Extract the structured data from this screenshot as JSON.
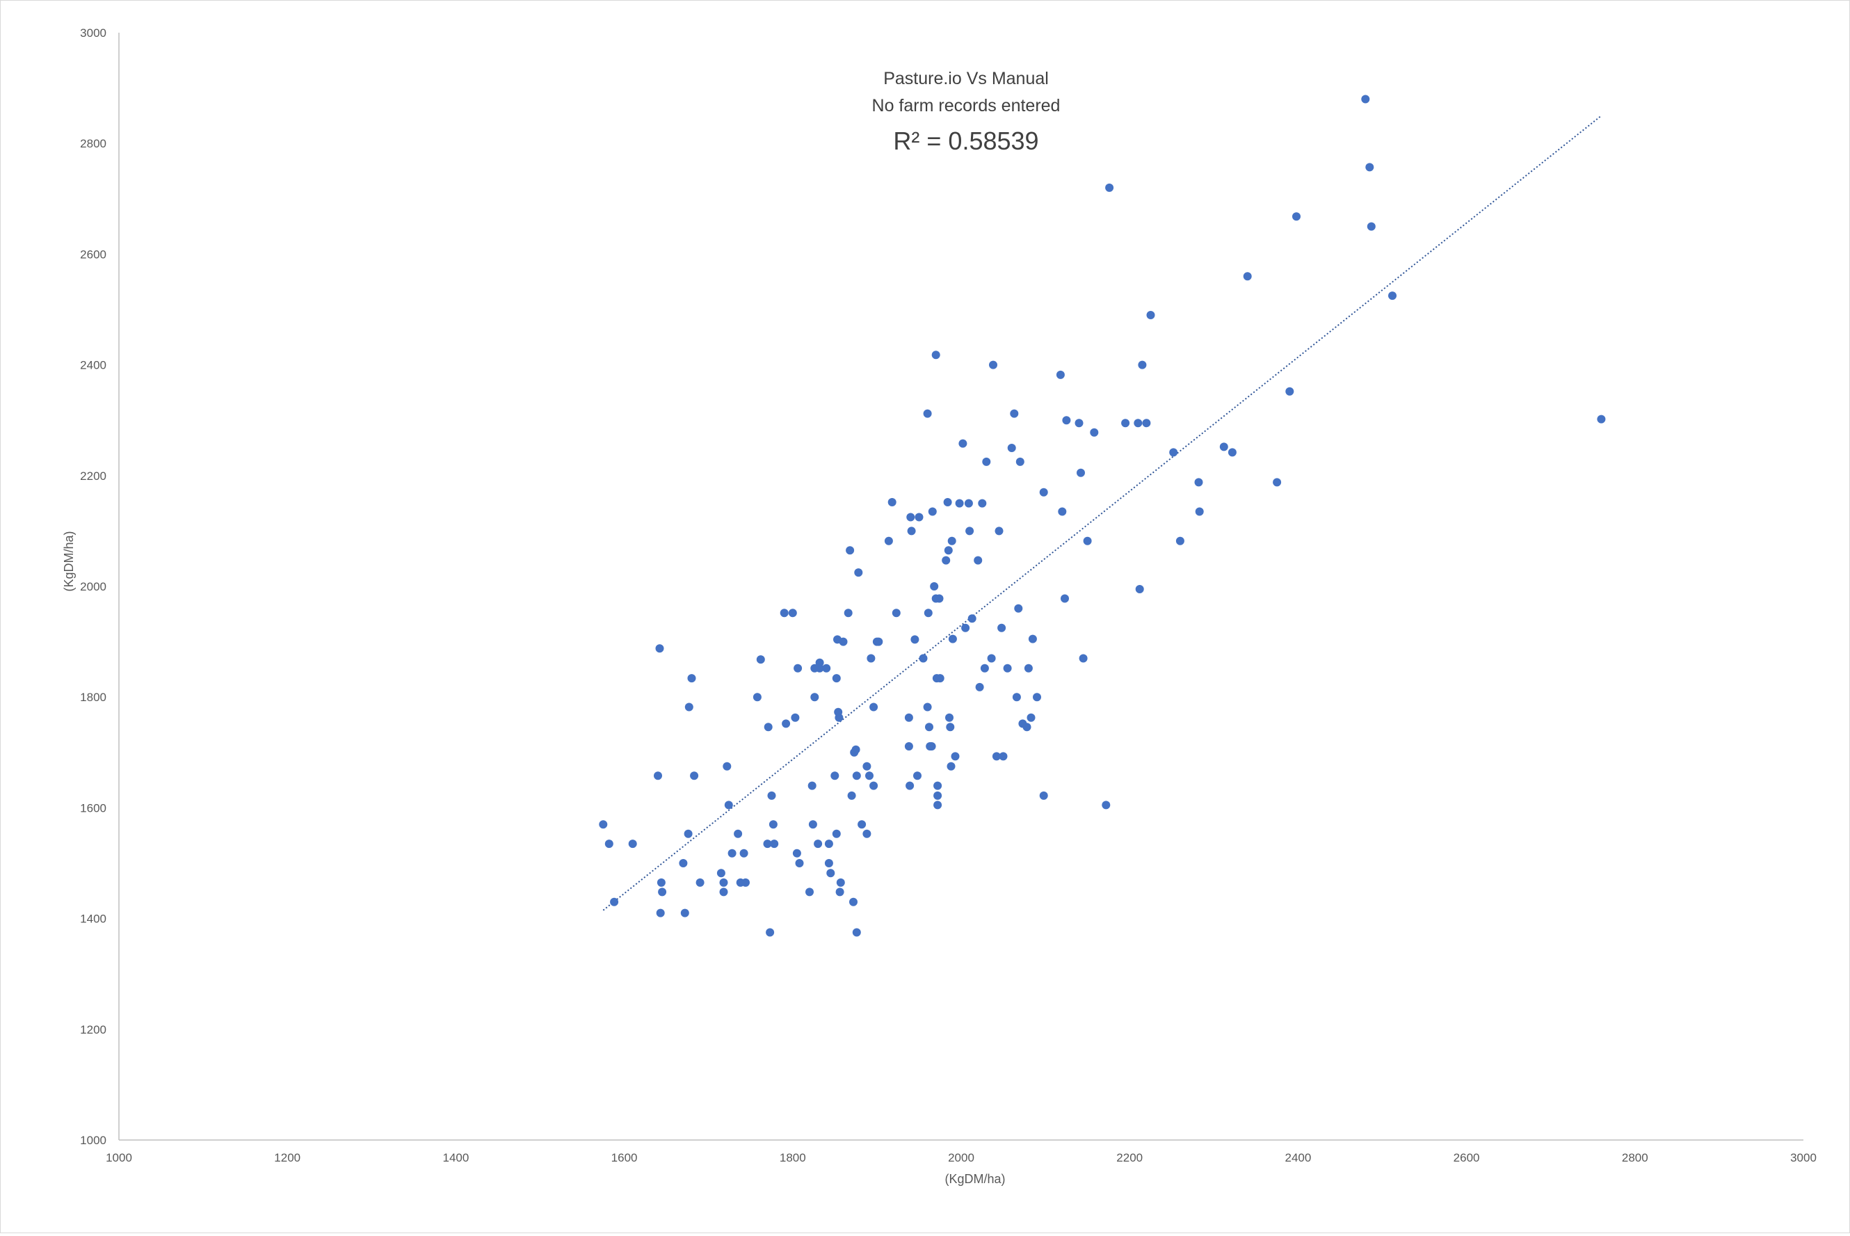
{
  "chart_data": {
    "type": "scatter",
    "title": "Pasture.io Vs Manual",
    "subtitle": "No farm records entered",
    "annotation": "R² = 0.58539",
    "xlabel": "(KgDM/ha)",
    "ylabel": "(KgDM/ha)",
    "xlim": [
      1000,
      3000
    ],
    "ylim": [
      1000,
      3000
    ],
    "x_ticks": [
      "1000",
      "1200",
      "1400",
      "1600",
      "1800",
      "2000",
      "2200",
      "2400",
      "2600",
      "2800",
      "3000"
    ],
    "y_ticks": [
      "1000",
      "1200",
      "1400",
      "1600",
      "1800",
      "2000",
      "2200",
      "2400",
      "2600",
      "2800",
      "3000"
    ],
    "grid": false,
    "legend": "none",
    "marker_color": "#4472c4",
    "trendline": {
      "style": "dotted",
      "color": "#2f5597",
      "from": [
        1575,
        1415
      ],
      "to": [
        2760,
        2850
      ]
    },
    "series": [
      {
        "points": [
          [
            1575,
            1570
          ],
          [
            1582,
            1535
          ],
          [
            1588,
            1430
          ],
          [
            1610,
            1535
          ],
          [
            1640,
            1658
          ],
          [
            1642,
            1888
          ],
          [
            1644,
            1465
          ],
          [
            1645,
            1448
          ],
          [
            1643,
            1410
          ],
          [
            1670,
            1500
          ],
          [
            1672,
            1410
          ],
          [
            1676,
            1553
          ],
          [
            1677,
            1782
          ],
          [
            1680,
            1834
          ],
          [
            1683,
            1658
          ],
          [
            1690,
            1465
          ],
          [
            1715,
            1482
          ],
          [
            1718,
            1465
          ],
          [
            1718,
            1448
          ],
          [
            1722,
            1675
          ],
          [
            1724,
            1605
          ],
          [
            1728,
            1518
          ],
          [
            1735,
            1553
          ],
          [
            1738,
            1465
          ],
          [
            1742,
            1518
          ],
          [
            1744,
            1465
          ],
          [
            1758,
            1800
          ],
          [
            1762,
            1868
          ],
          [
            1770,
            1535
          ],
          [
            1771,
            1746
          ],
          [
            1775,
            1622
          ],
          [
            1773,
            1375
          ],
          [
            1777,
            1570
          ],
          [
            1778,
            1535
          ],
          [
            1790,
            1952
          ],
          [
            1792,
            1752
          ],
          [
            1800,
            1952
          ],
          [
            1805,
            1518
          ],
          [
            1803,
            1763
          ],
          [
            1806,
            1852
          ],
          [
            1808,
            1500
          ],
          [
            1820,
            1448
          ],
          [
            1823,
            1640
          ],
          [
            1824,
            1570
          ],
          [
            1826,
            1800
          ],
          [
            1826,
            1852
          ],
          [
            1830,
            1535
          ],
          [
            1832,
            1852
          ],
          [
            1832,
            1862
          ],
          [
            1840,
            1852
          ],
          [
            1843,
            1535
          ],
          [
            1843,
            1500
          ],
          [
            1845,
            1482
          ],
          [
            1850,
            1658
          ],
          [
            1852,
            1834
          ],
          [
            1852,
            1553
          ],
          [
            1853,
            1904
          ],
          [
            1854,
            1773
          ],
          [
            1855,
            1763
          ],
          [
            1856,
            1448
          ],
          [
            1857,
            1465
          ],
          [
            1860,
            1900
          ],
          [
            1866,
            1952
          ],
          [
            1868,
            2065
          ],
          [
            1870,
            1622
          ],
          [
            1872,
            1430
          ],
          [
            1873,
            1700
          ],
          [
            1875,
            1705
          ],
          [
            1876,
            1658
          ],
          [
            1876,
            1375
          ],
          [
            1878,
            2025
          ],
          [
            1882,
            1570
          ],
          [
            1888,
            1553
          ],
          [
            1888,
            1675
          ],
          [
            1891,
            1658
          ],
          [
            1893,
            1870
          ],
          [
            1896,
            1640
          ],
          [
            1896,
            1782
          ],
          [
            1900,
            1900
          ],
          [
            1902,
            1900
          ],
          [
            1914,
            2082
          ],
          [
            1918,
            2152
          ],
          [
            1923,
            1952
          ],
          [
            1938,
            1763
          ],
          [
            1938,
            1711
          ],
          [
            1939,
            1640
          ],
          [
            1940,
            2125
          ],
          [
            1941,
            2100
          ],
          [
            1945,
            1904
          ],
          [
            1948,
            1658
          ],
          [
            1950,
            2125
          ],
          [
            1955,
            1870
          ],
          [
            1960,
            1782
          ],
          [
            1960,
            2312
          ],
          [
            1961,
            1952
          ],
          [
            1962,
            1746
          ],
          [
            1963,
            1711
          ],
          [
            1965,
            1711
          ],
          [
            1966,
            2135
          ],
          [
            1968,
            2000
          ],
          [
            1970,
            1978
          ],
          [
            1970,
            2418
          ],
          [
            1971,
            1834
          ],
          [
            1972,
            1622
          ],
          [
            1972,
            1605
          ],
          [
            1972,
            1640
          ],
          [
            1974,
            1978
          ],
          [
            1975,
            1834
          ],
          [
            1982,
            2047
          ],
          [
            1984,
            2152
          ],
          [
            1985,
            2065
          ],
          [
            1986,
            1763
          ],
          [
            1987,
            1746
          ],
          [
            1988,
            1675
          ],
          [
            1989,
            2082
          ],
          [
            1990,
            1905
          ],
          [
            1993,
            1693
          ],
          [
            1998,
            2150
          ],
          [
            2002,
            2258
          ],
          [
            2005,
            1925
          ],
          [
            2009,
            2150
          ],
          [
            2010,
            2100
          ],
          [
            2013,
            1942
          ],
          [
            2020,
            2047
          ],
          [
            2022,
            1818
          ],
          [
            2025,
            2150
          ],
          [
            2028,
            1852
          ],
          [
            2030,
            2225
          ],
          [
            2036,
            1870
          ],
          [
            2038,
            2400
          ],
          [
            2042,
            1693
          ],
          [
            2045,
            2100
          ],
          [
            2048,
            1925
          ],
          [
            2050,
            1693
          ],
          [
            2055,
            1852
          ],
          [
            2060,
            2250
          ],
          [
            2063,
            2312
          ],
          [
            2066,
            1800
          ],
          [
            2068,
            1960
          ],
          [
            2070,
            2225
          ],
          [
            2073,
            1752
          ],
          [
            2078,
            1746
          ],
          [
            2080,
            1852
          ],
          [
            2083,
            1763
          ],
          [
            2085,
            1905
          ],
          [
            2090,
            1800
          ],
          [
            2098,
            1622
          ],
          [
            2098,
            2170
          ],
          [
            2118,
            2382
          ],
          [
            2120,
            2135
          ],
          [
            2123,
            1978
          ],
          [
            2125,
            2300
          ],
          [
            2140,
            2295
          ],
          [
            2142,
            2205
          ],
          [
            2145,
            1870
          ],
          [
            2150,
            2082
          ],
          [
            2158,
            2278
          ],
          [
            2172,
            1605
          ],
          [
            2176,
            2720
          ],
          [
            2195,
            2295
          ],
          [
            2210,
            2295
          ],
          [
            2212,
            1995
          ],
          [
            2215,
            2400
          ],
          [
            2220,
            2295
          ],
          [
            2225,
            2490
          ],
          [
            2252,
            2242
          ],
          [
            2260,
            2082
          ],
          [
            2282,
            2188
          ],
          [
            2283,
            2135
          ],
          [
            2312,
            2252
          ],
          [
            2322,
            2242
          ],
          [
            2340,
            2560
          ],
          [
            2375,
            2188
          ],
          [
            2390,
            2352
          ],
          [
            2398,
            2668
          ],
          [
            2480,
            2880
          ],
          [
            2485,
            2757
          ],
          [
            2487,
            2650
          ],
          [
            2512,
            2525
          ],
          [
            2760,
            2302
          ]
        ]
      }
    ]
  }
}
